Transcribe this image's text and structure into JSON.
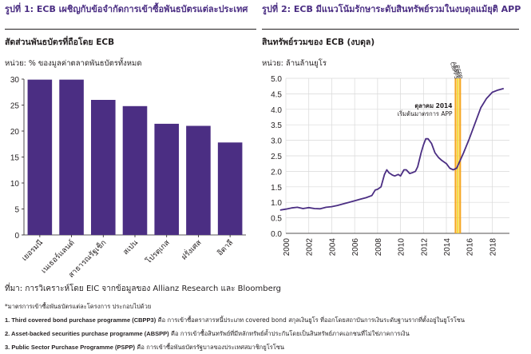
{
  "figure1": {
    "title": "รูปที่ 1: ECB เผชิญกับข้อจำกัดการเข้าซื้อพันธบัตรแต่ละประเทศ",
    "subtitle": "สัดส่วนพันธบัตรที่ถือโดย ECB",
    "unit": "หน่วย: % ของมูลค่าตลาดพันธบัตรทั้งหมด"
  },
  "figure2": {
    "title": "รูปที่ 2: ECB มีแนวโน้มรักษาระดับสินทรัพย์รวมในงบดุลแม้ยุติ APP",
    "subtitle": "สินทรัพย์รวมของ ECB (งบดุล)",
    "unit": "หน่วย: ล้านล้านยูโร"
  },
  "source": "ที่มา: การวิเคราะห์โดย EIC จากข้อมูลของ Allianz Research และ Bloomberg",
  "notes": [
    {
      "bold": "",
      "text": "*มาตรการเข้าซื้อพันธบัตรแต่ละโครงการ ประกอบไปด้วย"
    },
    {
      "bold": "1. Third covered bond purchase programme (CBPP3)",
      "text": " คือ การเข้าซื้อตราสารหนี้ประเภท covered bond สกุลเงินยูโร ที่ออกโดยสถาบันการเงินระดับฐานรากที่ตั้งอยู่ในยูโรโซน"
    },
    {
      "bold": "2. Asset-backed securities purchase programme (ABSPP)",
      "text": " คือ การเข้าซื้อสินทรัพย์ที่มีหลักทรัพย์ค้ำประกันโดยเป็นสินทรัพย์ภาคเอกชนที่ไม่ใช่ภาคการเงิน"
    },
    {
      "bold": "3. Public Sector Purchase Programme (PSPP)",
      "text": " คือ การเข้าซื้อพันธบัตรรัฐบาลของประเทศสมาชิกยูโรโซน"
    }
  ],
  "chart_data": [
    {
      "type": "bar",
      "categories": [
        "เยอรมนี",
        "เนเธอร์แลนด์",
        "สาธารณรัฐเช็ก",
        "สเปน",
        "โปรตุเกส",
        "ฝรั่งเศส",
        "อิตาลี"
      ],
      "values": [
        29.9,
        29.9,
        26.0,
        24.8,
        21.4,
        21.0,
        17.8
      ],
      "ylim": [
        0,
        30
      ],
      "yticks": [
        0,
        5,
        10,
        15,
        20,
        25,
        30
      ],
      "color": "#4b2e83",
      "grid": false
    },
    {
      "type": "line",
      "ylim": [
        0,
        5.0
      ],
      "yticks": [
        "0.0",
        "0.5",
        "1.0",
        "1.5",
        "2.0",
        "2.5",
        "3.0",
        "3.5",
        "4.0",
        "4.5",
        "5.0"
      ],
      "xlim": [
        2000,
        2019.5
      ],
      "xticks": [
        "2000",
        "2002",
        "2004",
        "2006",
        "2008",
        "2010",
        "2012",
        "2014",
        "2016",
        "2018"
      ],
      "color": "#4b2e83",
      "grid": true,
      "series": [
        {
          "x": [
            1999.5,
            2000.0,
            2000.5,
            2001.0,
            2001.5,
            2002.0,
            2002.5,
            2003.0,
            2003.5,
            2004.0,
            2004.5,
            2005.0,
            2005.5,
            2006.0,
            2006.5,
            2007.0,
            2007.5,
            2007.8,
            2008.0,
            2008.3,
            2008.6,
            2008.8,
            2009.0,
            2009.3,
            2009.5,
            2009.8,
            2010.0,
            2010.3,
            2010.5,
            2010.8,
            2011.0,
            2011.3,
            2011.5,
            2011.8,
            2012.0,
            2012.2,
            2012.4,
            2012.7,
            2013.0,
            2013.3,
            2013.6,
            2014.0,
            2014.3,
            2014.6,
            2014.9,
            2015.2,
            2015.5,
            2016.0,
            2016.5,
            2017.0,
            2017.5,
            2018.0,
            2018.5,
            2019.0
          ],
          "y": [
            0.75,
            0.78,
            0.82,
            0.84,
            0.8,
            0.83,
            0.8,
            0.79,
            0.84,
            0.86,
            0.9,
            0.95,
            1.0,
            1.05,
            1.1,
            1.15,
            1.22,
            1.4,
            1.42,
            1.5,
            1.9,
            2.05,
            1.95,
            1.88,
            1.85,
            1.9,
            1.85,
            2.05,
            2.05,
            1.93,
            1.95,
            2.0,
            2.15,
            2.6,
            2.85,
            3.05,
            3.05,
            2.9,
            2.6,
            2.45,
            2.35,
            2.25,
            2.1,
            2.05,
            2.1,
            2.35,
            2.6,
            3.05,
            3.55,
            4.05,
            4.35,
            4.55,
            4.62,
            4.67
          ]
        }
      ],
      "markers": [
        {
          "x": 2014.8,
          "color": "#f5a623",
          "label": "CBPP3"
        },
        {
          "x": 2015.0,
          "color": "#f5d423",
          "label": "ABSPP"
        },
        {
          "x": 2015.2,
          "color": "#f5a623",
          "label": "PSPP"
        }
      ],
      "annotation": {
        "x": 2014.8,
        "title": "ตุลาคม 2014",
        "text": "เริ่มต้นมาตรการ APP"
      }
    }
  ]
}
